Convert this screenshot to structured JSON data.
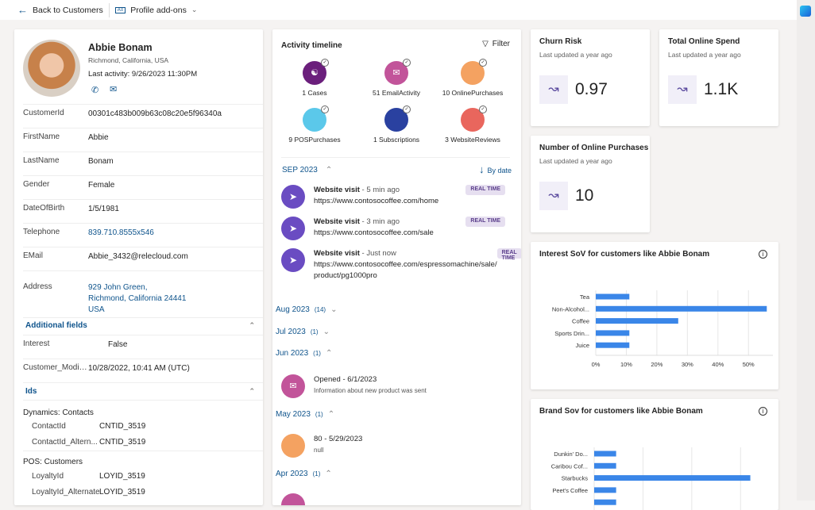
{
  "topbar": {
    "back_label": "Back to Customers",
    "addons_label": "Profile add-ons"
  },
  "profile": {
    "name": "Abbie Bonam",
    "location": "Richmond, California, USA",
    "last_activity": "Last activity: 9/26/2023 11:30PM",
    "fields": [
      {
        "key": "CustomerId",
        "value": "00301c483b009b63c08c20e5f96340a"
      },
      {
        "key": "FirstName",
        "value": "Abbie"
      },
      {
        "key": "LastName",
        "value": "Bonam"
      },
      {
        "key": "Gender",
        "value": "Female"
      },
      {
        "key": "DateOfBirth",
        "value": "1/5/1981"
      },
      {
        "key": "Telephone",
        "value": "839.710.8555x546"
      },
      {
        "key": "EMail",
        "value": "Abbie_3432@relecloud.com"
      }
    ],
    "address_key": "Address",
    "address_lines": [
      "929 John Green,",
      "Richmond, California 24441",
      "USA"
    ],
    "additional_title": "Additional fields",
    "additional": [
      {
        "key": "Interest",
        "value": "False"
      },
      {
        "key": "Customer_Modified...",
        "value": "10/28/2022, 10:41 AM (UTC)"
      }
    ],
    "ids_title": "Ids",
    "id_groups": [
      {
        "title": "Dynamics: Contacts",
        "items": [
          {
            "key": "ContactId",
            "value": "CNTID_3519"
          },
          {
            "key": "ContactId_Altern...",
            "value": "CNTID_3519"
          }
        ]
      },
      {
        "title": "POS: Customers",
        "items": [
          {
            "key": "LoyaltyId",
            "value": "LOYID_3519"
          },
          {
            "key": "LoyaltyId_Alternate",
            "value": "LOYID_3519"
          }
        ]
      }
    ]
  },
  "timeline": {
    "title": "Activity timeline",
    "filter_label": "Filter",
    "tiles": [
      {
        "label": "1 Cases",
        "color": "#6b1f7c",
        "icon": "people-icon"
      },
      {
        "label": "51 EmailActivity",
        "color": "#c2549a",
        "icon": "mail-icon"
      },
      {
        "label": "10 OnlinePurchases",
        "color": "#f4a261",
        "icon": ""
      },
      {
        "label": "9 POSPurchases",
        "color": "#5bc8ea",
        "icon": ""
      },
      {
        "label": "1 Subscriptions",
        "color": "#2a41a0",
        "icon": ""
      },
      {
        "label": "3 WebsiteReviews",
        "color": "#e9665d",
        "icon": ""
      }
    ],
    "current_month": "SEP 2023",
    "sort_label": "By date",
    "events": [
      {
        "title": "Website visit",
        "time": "- 5 min ago",
        "url": "https://www.contosocoffee.com/home",
        "badge": "REAL TIME"
      },
      {
        "title": "Website visit",
        "time": "- 3 min ago",
        "url": "https://www.contosocoffee.com/sale",
        "badge": "REAL TIME"
      },
      {
        "title": "Website visit",
        "time": "- Just now",
        "url": "https://www.contosocoffee.com/espressomachine/sale/ product/pg1000pro",
        "badge": "REAL TIME"
      }
    ],
    "months": [
      {
        "label": "Aug 2023",
        "count": "(14)"
      },
      {
        "label": "Jul 2023",
        "count": "(1)"
      },
      {
        "label": "Jun 2023",
        "count": "(1)"
      },
      {
        "label": "May 2023",
        "count": "(1)"
      },
      {
        "label": "Apr 2023",
        "count": "(1)"
      }
    ],
    "jun_event": {
      "title": "Opened -   6/1/2023",
      "detail": "Information about new product was sent"
    },
    "may_event": {
      "title": "80 - 5/29/2023",
      "detail": "null"
    }
  },
  "kpis": [
    {
      "title": "Churn Risk",
      "updated": "Last updated a year ago",
      "value": "0.97"
    },
    {
      "title": "Total Online Spend",
      "updated": "Last updated a year ago",
      "value": "1.1K"
    },
    {
      "title": "Number of Online Purchases",
      "updated": "Last updated a year ago",
      "value": "10"
    }
  ],
  "chart_data": [
    {
      "type": "bar",
      "orientation": "horizontal",
      "title": "Interest SoV for customers like Abbie Bonam",
      "categories": [
        "Tea",
        "Non-Alcohol...",
        "Coffee",
        "Sports Drin...",
        "Juice"
      ],
      "values": [
        11,
        56,
        27,
        11,
        11
      ],
      "xticks": [
        "0%",
        "10%",
        "20%",
        "30%",
        "40%",
        "50%"
      ],
      "xlim": [
        0,
        58
      ],
      "grid": true,
      "color": "#3a86e8"
    },
    {
      "type": "bar",
      "orientation": "horizontal",
      "title": "Brand Sov for customers like  Abbie Bonam",
      "categories": [
        "Dunkin' Do...",
        "Caribou Cof...",
        "Starbucks",
        "Peet's Coffee",
        ""
      ],
      "values": [
        9,
        9,
        64,
        9,
        9
      ],
      "xlim": [
        0,
        70
      ],
      "grid": true,
      "color": "#3a86e8"
    }
  ]
}
